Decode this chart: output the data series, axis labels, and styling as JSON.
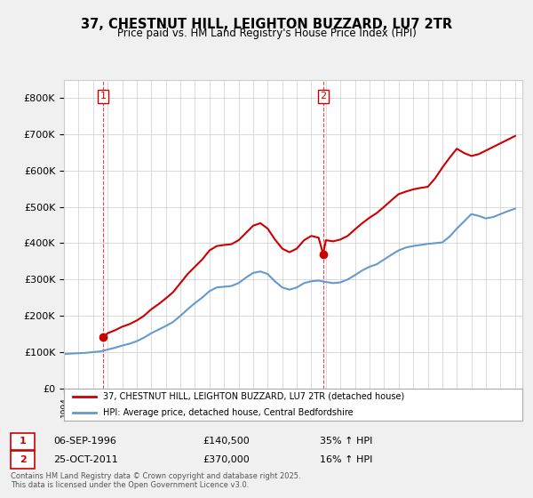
{
  "title": "37, CHESTNUT HILL, LEIGHTON BUZZARD, LU7 2TR",
  "subtitle": "Price paid vs. HM Land Registry's House Price Index (HPI)",
  "xlabel": "",
  "ylabel": "",
  "ylim": [
    0,
    850000
  ],
  "yticks": [
    0,
    100000,
    200000,
    300000,
    400000,
    500000,
    600000,
    700000,
    800000
  ],
  "ytick_labels": [
    "£0",
    "£100K",
    "£200K",
    "£300K",
    "£400K",
    "£500K",
    "£600K",
    "£700K",
    "£800K"
  ],
  "x_start_year": 1994,
  "x_end_year": 2025,
  "sale1_date": 1996.68,
  "sale1_price": 140500,
  "sale1_label": "1",
  "sale2_date": 2011.81,
  "sale2_price": 370000,
  "sale2_label": "2",
  "red_line_color": "#cc0000",
  "blue_line_color": "#6699cc",
  "background_color": "#f0f0f0",
  "plot_bg_color": "#ffffff",
  "legend1_text": "37, CHESTNUT HILL, LEIGHTON BUZZARD, LU7 2TR (detached house)",
  "legend2_text": "HPI: Average price, detached house, Central Bedfordshire",
  "annotation1": "1   06-SEP-1996      £140,500       35% ↑ HPI",
  "annotation2": "2   25-OCT-2011      £370,000       16% ↑ HPI",
  "footer": "Contains HM Land Registry data © Crown copyright and database right 2025.\nThis data is licensed under the Open Government Licence v3.0.",
  "hpi_years": [
    1994,
    1994.5,
    1995,
    1995.5,
    1996,
    1996.5,
    1997,
    1997.5,
    1998,
    1998.5,
    1999,
    1999.5,
    2000,
    2000.5,
    2001,
    2001.5,
    2002,
    2002.5,
    2003,
    2003.5,
    2004,
    2004.5,
    2005,
    2005.5,
    2006,
    2006.5,
    2007,
    2007.5,
    2008,
    2008.5,
    2009,
    2009.5,
    2010,
    2010.5,
    2011,
    2011.5,
    2012,
    2012.5,
    2013,
    2013.5,
    2014,
    2014.5,
    2015,
    2015.5,
    2016,
    2016.5,
    2017,
    2017.5,
    2018,
    2018.5,
    2019,
    2019.5,
    2020,
    2020.5,
    2021,
    2021.5,
    2022,
    2022.5,
    2023,
    2023.5,
    2024,
    2024.5,
    2025
  ],
  "hpi_values": [
    95000,
    96000,
    97000,
    98000,
    100000,
    102000,
    107000,
    112000,
    118000,
    123000,
    130000,
    140000,
    152000,
    162000,
    172000,
    183000,
    200000,
    218000,
    235000,
    250000,
    268000,
    278000,
    280000,
    282000,
    290000,
    305000,
    318000,
    322000,
    315000,
    295000,
    278000,
    272000,
    278000,
    290000,
    295000,
    297000,
    293000,
    290000,
    292000,
    300000,
    312000,
    325000,
    335000,
    342000,
    355000,
    368000,
    380000,
    388000,
    392000,
    395000,
    398000,
    400000,
    402000,
    418000,
    440000,
    460000,
    480000,
    475000,
    468000,
    472000,
    480000,
    488000,
    495000
  ],
  "red_years": [
    1994,
    1994.5,
    1995,
    1995.5,
    1996,
    1996.5,
    1996.68,
    1997,
    1997.5,
    1998,
    1998.5,
    1999,
    1999.5,
    2000,
    2000.5,
    2001,
    2001.5,
    2002,
    2002.5,
    2003,
    2003.5,
    2004,
    2004.5,
    2005,
    2005.5,
    2006,
    2006.5,
    2007,
    2007.5,
    2008,
    2008.5,
    2009,
    2009.5,
    2010,
    2010.5,
    2011,
    2011.5,
    2011.81,
    2012,
    2012.5,
    2013,
    2013.5,
    2014,
    2014.5,
    2015,
    2015.5,
    2016,
    2016.5,
    2017,
    2017.5,
    2018,
    2018.5,
    2019,
    2019.5,
    2020,
    2020.5,
    2021,
    2021.5,
    2022,
    2022.5,
    2023,
    2023.5,
    2024,
    2024.5,
    2025
  ],
  "red_values": [
    null,
    null,
    null,
    null,
    null,
    null,
    140500,
    152000,
    160000,
    170000,
    177000,
    187000,
    200000,
    218000,
    232000,
    248000,
    265000,
    290000,
    315000,
    335000,
    355000,
    380000,
    392000,
    395000,
    397000,
    408000,
    428000,
    448000,
    455000,
    440000,
    410000,
    385000,
    375000,
    385000,
    408000,
    420000,
    415000,
    370000,
    408000,
    405000,
    410000,
    420000,
    438000,
    455000,
    470000,
    483000,
    500000,
    518000,
    535000,
    542000,
    548000,
    552000,
    555000,
    578000,
    608000,
    635000,
    660000,
    648000,
    640000,
    645000,
    655000,
    665000,
    675000,
    685000,
    695000
  ]
}
